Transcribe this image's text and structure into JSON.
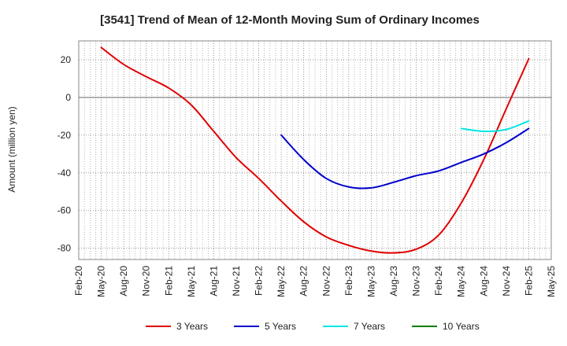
{
  "chart_data": {
    "type": "line",
    "title": "[3541]  Trend of Mean of 12-Month Moving Sum of Ordinary Incomes",
    "xlabel": "",
    "ylabel": "Amount (million yen)",
    "ylim": [
      -86,
      30
    ],
    "yticks": [
      20,
      0,
      -20,
      -40,
      -60,
      -80
    ],
    "xtick_labels": [
      "Feb-20",
      "May-20",
      "Aug-20",
      "Nov-20",
      "Feb-21",
      "May-21",
      "Aug-21",
      "Nov-21",
      "Feb-22",
      "May-22",
      "Aug-22",
      "Nov-22",
      "Feb-23",
      "May-23",
      "Aug-23",
      "Nov-23",
      "Feb-24",
      "May-24",
      "Aug-24",
      "Nov-24",
      "Feb-25",
      "May-25"
    ],
    "grid": true,
    "legend_position": "bottom",
    "series": [
      {
        "name": "3 Years",
        "color": "#e00000",
        "points": [
          [
            1,
            26.5
          ],
          [
            2,
            17.5
          ],
          [
            3,
            11
          ],
          [
            4,
            5
          ],
          [
            5,
            -4
          ],
          [
            6,
            -18
          ],
          [
            7,
            -32
          ],
          [
            8,
            -43
          ],
          [
            9,
            -55
          ],
          [
            10,
            -66
          ],
          [
            11,
            -74
          ],
          [
            12,
            -78.5
          ],
          [
            13,
            -81.5
          ],
          [
            14,
            -82.5
          ],
          [
            15,
            -80.5
          ],
          [
            16,
            -73
          ],
          [
            17,
            -56
          ],
          [
            18,
            -33
          ],
          [
            19,
            -6
          ],
          [
            20,
            20.5
          ]
        ]
      },
      {
        "name": "5 Years",
        "color": "#0000cc",
        "points": [
          [
            9,
            -20
          ],
          [
            10,
            -33
          ],
          [
            11,
            -43
          ],
          [
            12,
            -47.5
          ],
          [
            13,
            -48
          ],
          [
            14,
            -45
          ],
          [
            15,
            -41.5
          ],
          [
            16,
            -39
          ],
          [
            17,
            -34.5
          ],
          [
            18,
            -30
          ],
          [
            19,
            -24
          ],
          [
            20,
            -16.5
          ]
        ]
      },
      {
        "name": "7 Years",
        "color": "#00e5e5",
        "points": [
          [
            17,
            -16.5
          ],
          [
            18,
            -18
          ],
          [
            19,
            -17
          ],
          [
            20,
            -12.5
          ]
        ]
      },
      {
        "name": "10 Years",
        "color": "#008000",
        "points": []
      }
    ]
  }
}
